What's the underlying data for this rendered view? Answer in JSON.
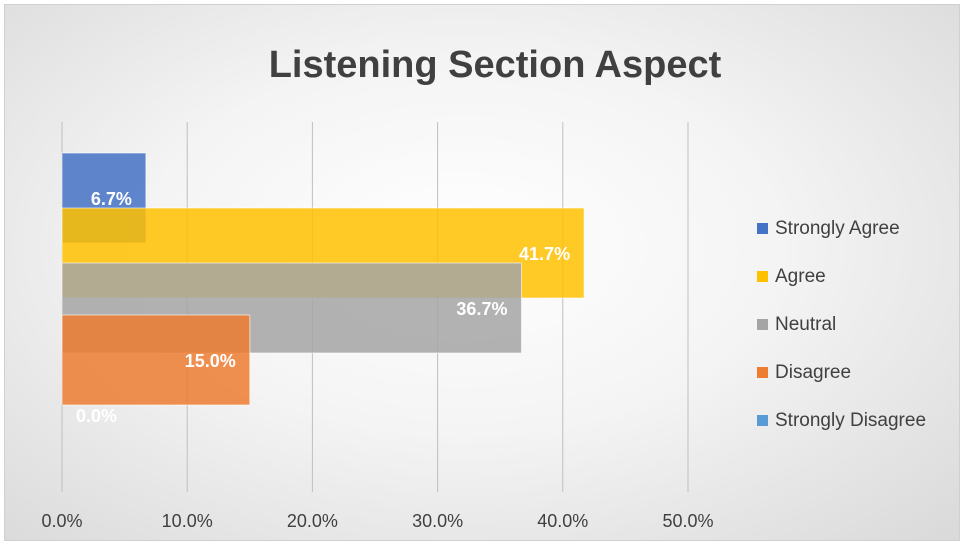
{
  "chart_data": {
    "type": "bar",
    "orientation": "horizontal",
    "title": "Listening Section Aspect",
    "xlabel": "",
    "ylabel": "",
    "xlim": [
      0,
      50
    ],
    "x_ticks": [
      "0.0%",
      "10.0%",
      "20.0%",
      "30.0%",
      "40.0%",
      "50.0%"
    ],
    "grid": "vertical",
    "legend_position": "right",
    "series": [
      {
        "name": "Strongly Agree",
        "value": 6.7,
        "label": "6.7%",
        "color": "#4472C4"
      },
      {
        "name": "Agree",
        "value": 41.7,
        "label": "41.7%",
        "color": "#FFC000"
      },
      {
        "name": "Neutral",
        "value": 36.7,
        "label": "36.7%",
        "color": "#A5A5A5"
      },
      {
        "name": "Disagree",
        "value": 15.0,
        "label": "15.0%",
        "color": "#ED7D31"
      },
      {
        "name": "Strongly Disagree",
        "value": 0.0,
        "label": "0.0%",
        "color": "#5B9BD5"
      }
    ]
  }
}
